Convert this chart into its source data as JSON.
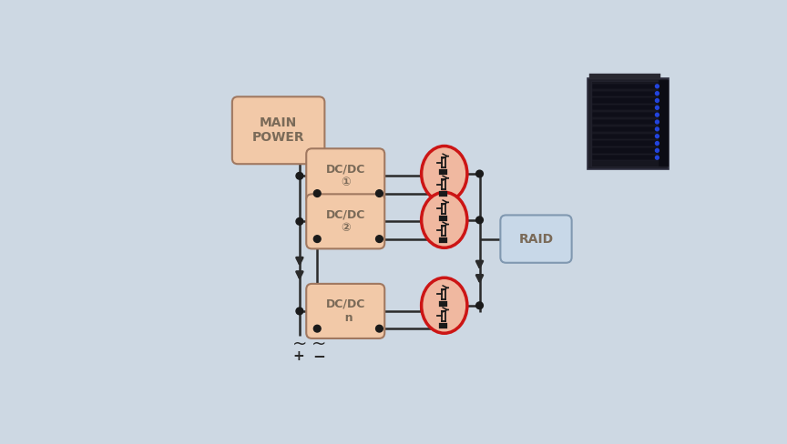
{
  "bg_color": "#cdd8e3",
  "panel_bg": "#d8e4ee",
  "box_fill": "#f2c9a8",
  "box_edge": "#a07860",
  "raid_fill": "#c8d8e8",
  "raid_edge": "#8098b0",
  "mosfet_fill": "#f0b8a0",
  "mosfet_edge": "#cc1515",
  "line_color": "#2a2a2a",
  "dot_color": "#1a1a1a",
  "text_color": "#7a6a58",
  "main_power_label": "MAIN\nPOWER",
  "dcdc1_label": "DC/DC\n①",
  "dcdc2_label": "DC/DC\n②",
  "dcdcn_label": "DC/DC\n  n",
  "raid_label": "RAID",
  "figsize": [
    8.64,
    4.88
  ],
  "dpi": 100
}
